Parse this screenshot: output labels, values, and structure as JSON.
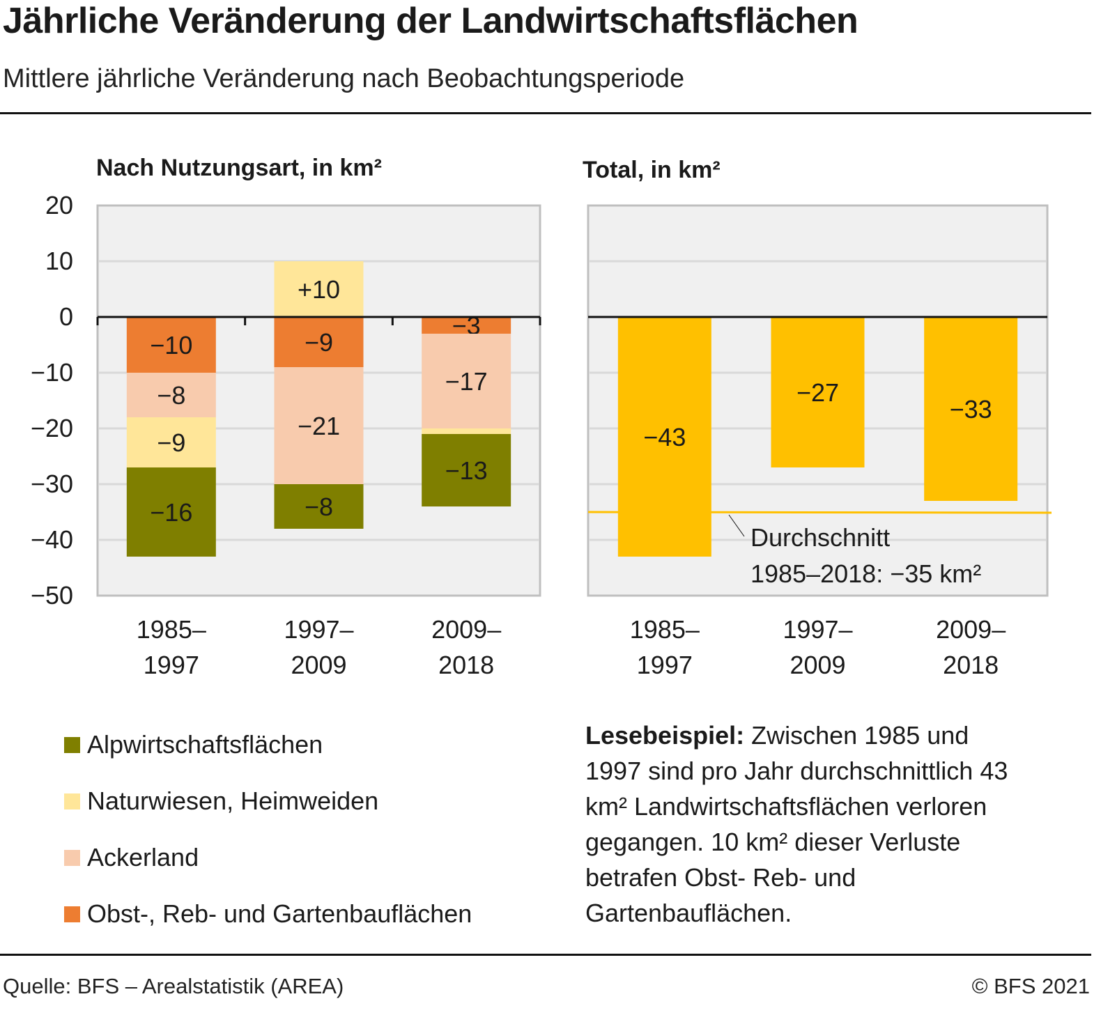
{
  "header": {
    "title": "Jährliche Veränderung der Landwirtschaftsflächen",
    "subtitle": "Mittlere jährliche Veränderung nach Beobachtungsperiode"
  },
  "footer": {
    "source": "Quelle: BFS – Arealstatistik (AREA)",
    "copyright": "© BFS 2021"
  },
  "reading_example": {
    "label": "Lesebeispiel:",
    "text": " Zwischen 1985 und 1997 sind pro Jahr durchschnittlich 43 km² Landwirtschaftsflächen verloren gegangen. 10 km² dieser Verluste betrafen Obst- Reb- und Gartenbauflächen."
  },
  "chart_data": [
    {
      "type": "bar",
      "stacked": true,
      "title": "Nach Nutzungsart, in km²",
      "categories": [
        "1985–\n1997",
        "1997–\n2009",
        "2009–\n2018"
      ],
      "ylim": [
        -50,
        20
      ],
      "yticks": [
        20,
        10,
        0,
        -10,
        -20,
        -30,
        -40,
        -50
      ],
      "ytick_labels": [
        "20",
        "10",
        "0",
        "−10",
        "−20",
        "−30",
        "−40",
        "−50"
      ],
      "grid": true,
      "series": [
        {
          "name": "Obst-, Reb- und Gartenbauflächen",
          "color": "#ED7D31",
          "values": [
            -10,
            -9,
            -3
          ],
          "labels": [
            "−10",
            "−9",
            "−3"
          ]
        },
        {
          "name": "Ackerland",
          "color": "#F8CBAD",
          "values": [
            -8,
            -21,
            -17
          ],
          "labels": [
            "−8",
            "−21",
            "−17"
          ]
        },
        {
          "name": "Naturwiesen, Heimweiden",
          "color": "#FFE699",
          "values": [
            -9,
            10,
            -1
          ],
          "labels": [
            "−9",
            "+10",
            ""
          ]
        },
        {
          "name": "Alpwirtschaftsflächen",
          "color": "#7F7F00",
          "values": [
            -16,
            -8,
            -13
          ],
          "labels": [
            "−16",
            "−8",
            "−13"
          ]
        }
      ],
      "legend": {
        "placement": "bottom-left",
        "entries": [
          {
            "name": "Alpwirtschaftsflächen",
            "color": "#7F7F00"
          },
          {
            "name": "Naturwiesen, Heimweiden",
            "color": "#FFE699"
          },
          {
            "name": "Ackerland",
            "color": "#F8CBAD"
          },
          {
            "name": "Obst-, Reb- und Gartenbauflächen",
            "color": "#ED7D31"
          }
        ]
      }
    },
    {
      "type": "bar",
      "title": "Total, in km²",
      "categories": [
        "1985–\n1997",
        "1997–\n2009",
        "2009–\n2018"
      ],
      "ylim": [
        -50,
        20
      ],
      "grid": true,
      "series": [
        {
          "name": "Total",
          "color": "#FFC000",
          "values": [
            -43,
            -27,
            -33
          ],
          "labels": [
            "−43",
            "−27",
            "−33"
          ]
        }
      ],
      "reference_line": {
        "value": -35,
        "color": "#FFC000",
        "label_line1": "Durchschnitt",
        "label_line2": "1985–2018: −35 km²"
      }
    }
  ]
}
